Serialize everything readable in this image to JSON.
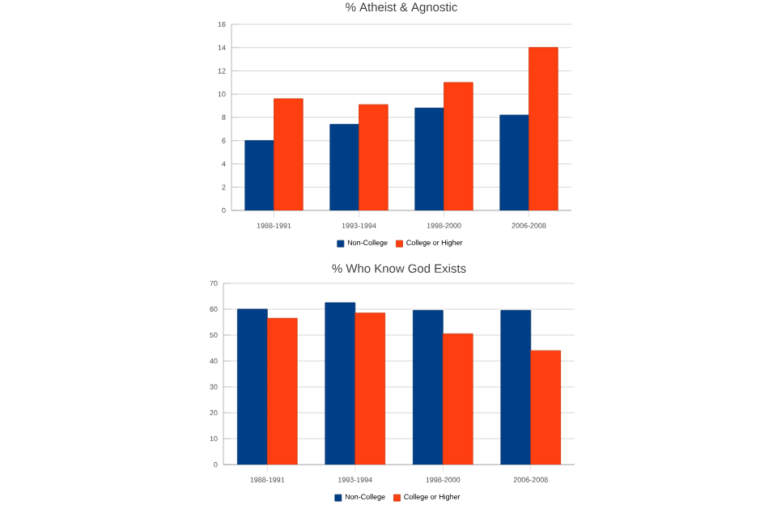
{
  "chart_data": [
    {
      "type": "bar",
      "title": "% Atheist & Agnostic",
      "categories": [
        "1988-1991",
        "1993-1994",
        "1998-2000",
        "2006-2008"
      ],
      "series": [
        {
          "name": "Non-College",
          "color": "#003f87",
          "values": [
            6,
            7.4,
            8.8,
            8.2
          ]
        },
        {
          "name": "College or Higher",
          "color": "#ff3f0f",
          "values": [
            9.6,
            9.1,
            11,
            14
          ]
        }
      ],
      "ylim": [
        0,
        16
      ],
      "yticks": [
        0,
        2,
        4,
        6,
        8,
        10,
        12,
        14,
        16
      ],
      "grid": "y",
      "legend": "bottom"
    },
    {
      "type": "bar",
      "title": "% Who Know God Exists",
      "categories": [
        "1988-1991",
        "1993-1994",
        "1998-2000",
        "2006-2008"
      ],
      "series": [
        {
          "name": "Non-College",
          "color": "#003f87",
          "values": [
            60,
            62.5,
            59.5,
            59.5
          ]
        },
        {
          "name": "College or Higher",
          "color": "#ff3f0f",
          "values": [
            56.5,
            58.5,
            50.5,
            44
          ]
        }
      ],
      "ylim": [
        0,
        70
      ],
      "yticks": [
        0,
        10,
        20,
        30,
        40,
        50,
        60,
        70
      ],
      "grid": "y",
      "legend": "bottom"
    }
  ]
}
